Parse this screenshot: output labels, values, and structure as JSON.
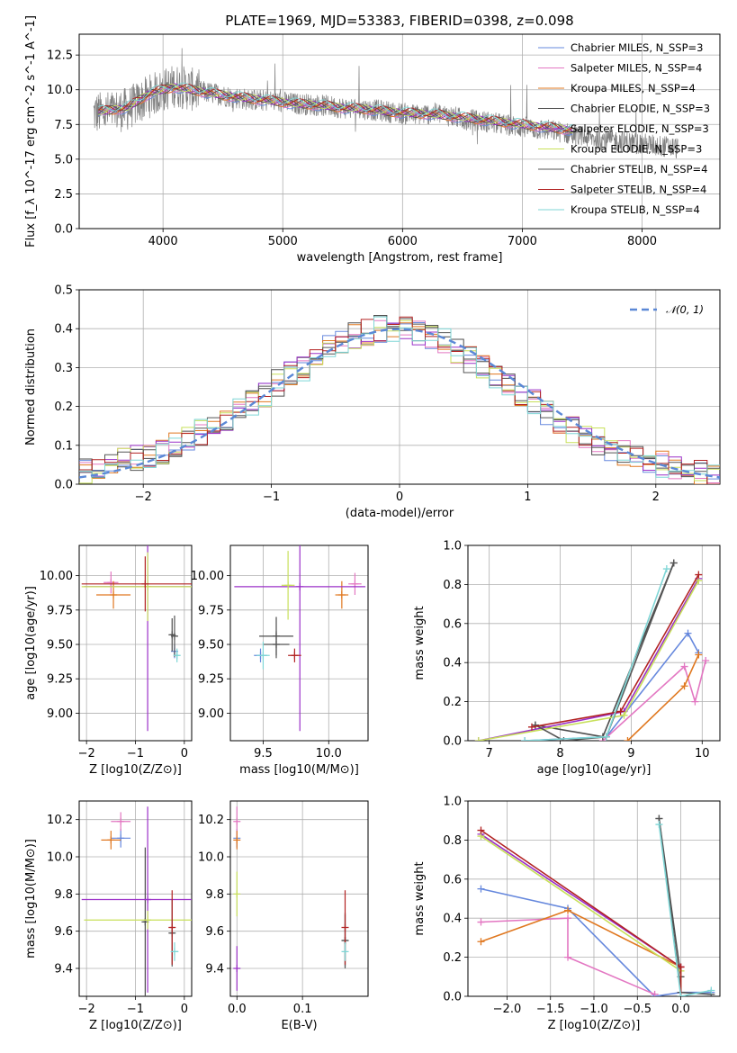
{
  "figure": {
    "title": "PLATE=1969, MJD=53383, FIBERID=0398, z=0.098"
  },
  "colors": {
    "data": "#808080",
    "series": [
      "#6688dd",
      "#e377c2",
      "#e07820",
      "#4d4d4d",
      "#9b30c8",
      "#c8e05a",
      "#555555",
      "#b22222",
      "#7fd6d6"
    ]
  },
  "chart_data": [
    {
      "id": "spectrum",
      "type": "line",
      "xlabel": "wavelength [Angstrom, rest frame]",
      "ylabel": "Flux [f_λ 10^-17 erg cm^-2 s^-1 A^-1]",
      "xlim": [
        3300,
        8650
      ],
      "ylim": [
        0,
        14
      ],
      "xticks": [
        "4000",
        "5000",
        "6000",
        "7000",
        "8000"
      ],
      "yticks": [
        "0.0",
        "2.5",
        "5.0",
        "7.5",
        "10.0",
        "12.5"
      ],
      "legend_position": "upper-right",
      "legend": [
        "Chabrier MILES, N_SSP=3",
        "Salpeter MILES, N_SSP=4",
        "Kroupa MILES, N_SSP=4",
        "Chabrier ELODIE, N_SSP=3",
        "Salpeter ELODIE, N_SSP=3",
        "Kroupa ELODIE, N_SSP=3",
        "Chabrier STELIB, N_SSP=4",
        "Salpeter STELIB, N_SSP=4",
        "Kroupa STELIB, N_SSP=4"
      ],
      "observed_trend": {
        "x": [
          3500,
          3700,
          3900,
          4100,
          4300,
          4500,
          4700,
          4900,
          5100,
          5300,
          5500,
          5700,
          5900,
          6100,
          6300,
          6500,
          6700,
          6900,
          7100,
          7300,
          7500,
          7700,
          7900,
          8100,
          8300
        ],
        "y": [
          8.3,
          8.6,
          9.6,
          10.3,
          9.9,
          9.6,
          9.3,
          9.2,
          9.0,
          8.9,
          8.7,
          8.6,
          8.4,
          8.2,
          8.3,
          7.9,
          7.7,
          7.4,
          7.2,
          7.0,
          6.6,
          6.4,
          6.2,
          6.0,
          5.8
        ]
      },
      "model_trend": {
        "x": [
          3450,
          3700,
          3900,
          4100,
          4300,
          4500,
          4700,
          4900,
          5100,
          5300,
          5500,
          5700,
          5900,
          6100,
          6300,
          6500,
          6700,
          6900,
          7100,
          7300,
          7420
        ],
        "y": [
          8.4,
          8.7,
          9.8,
          10.2,
          9.9,
          9.6,
          9.4,
          9.2,
          9.0,
          8.9,
          8.7,
          8.6,
          8.4,
          8.3,
          8.2,
          8.0,
          7.8,
          7.6,
          7.4,
          7.2,
          7.1
        ]
      }
    },
    {
      "id": "residuals",
      "type": "line",
      "xlabel": "(data-model)/error",
      "ylabel": "Normed distribution",
      "xlim": [
        -2.5,
        2.5
      ],
      "ylim": [
        0,
        0.5
      ],
      "xticks": [
        "−2",
        "−1",
        "0",
        "1",
        "2"
      ],
      "yticks": [
        "0.0",
        "0.1",
        "0.2",
        "0.3",
        "0.4",
        "0.5"
      ],
      "legend_position": "upper-right",
      "legend": [
        "𝒩(0, 1)"
      ],
      "histogram_bin_edges": [
        -2.5,
        -2.4,
        -2.3,
        -2.2,
        -2.1,
        -2.0,
        -1.9,
        -1.8,
        -1.7,
        -1.6,
        -1.5,
        -1.4,
        -1.3,
        -1.2,
        -1.1,
        -1.0,
        -0.9,
        -0.8,
        -0.7,
        -0.6,
        -0.5,
        -0.4,
        -0.3,
        -0.2,
        -0.1,
        0.0,
        0.1,
        0.2,
        0.3,
        0.4,
        0.5,
        0.6,
        0.7,
        0.8,
        0.9,
        1.0,
        1.1,
        1.2,
        1.3,
        1.4,
        1.5,
        1.6,
        1.7,
        1.8,
        1.9,
        2.0,
        2.1,
        2.2,
        2.3,
        2.4,
        2.5
      ],
      "histogram_mean": [
        0.03,
        0.035,
        0.045,
        0.06,
        0.065,
        0.07,
        0.08,
        0.1,
        0.12,
        0.135,
        0.15,
        0.17,
        0.19,
        0.21,
        0.23,
        0.26,
        0.28,
        0.3,
        0.32,
        0.35,
        0.37,
        0.38,
        0.39,
        0.4,
        0.4,
        0.4,
        0.39,
        0.38,
        0.37,
        0.34,
        0.32,
        0.3,
        0.27,
        0.25,
        0.23,
        0.21,
        0.18,
        0.16,
        0.14,
        0.12,
        0.11,
        0.09,
        0.08,
        0.07,
        0.06,
        0.05,
        0.04,
        0.035,
        0.03,
        0.025
      ],
      "gaussian": {
        "mu": 0,
        "sigma": 1
      }
    },
    {
      "id": "age-vs-Z",
      "type": "scatter",
      "xlabel": "Z [log10(Z/Z⊙)]",
      "ylabel": "age  [log10(age/yr)]",
      "xlim": [
        -2.15,
        0.15
      ],
      "ylim": [
        8.8,
        10.22
      ],
      "xticks": [
        "−2",
        "−1",
        "0"
      ],
      "yticks": [
        "9.00",
        "9.25",
        "9.50",
        "9.75",
        "10.00"
      ],
      "points": [
        {
          "series": 0,
          "x": -0.2,
          "y": 9.45,
          "xerr": 0.02,
          "yerr": 0.05
        },
        {
          "series": 1,
          "x": -1.5,
          "y": 9.95,
          "xerr": 0.15,
          "yerr": 0.08
        },
        {
          "series": 2,
          "x": -1.45,
          "y": 9.86,
          "xerr": 0.35,
          "yerr": 0.1
        },
        {
          "series": 3,
          "x": -0.25,
          "y": 9.57,
          "xerr": 0.05,
          "yerr": 0.12
        },
        {
          "series": 4,
          "x": -0.75,
          "y": 9.92,
          "xerr": 1.3,
          "yerr": 1.05
        },
        {
          "series": 5,
          "x": -0.75,
          "y": 9.92,
          "xerr": 1.35,
          "yerr": 0.25
        },
        {
          "series": 6,
          "x": -0.2,
          "y": 9.56,
          "xerr": 0.05,
          "yerr": 0.15
        },
        {
          "series": 7,
          "x": -0.8,
          "y": 9.94,
          "xerr": 1.3,
          "yerr": 0.2
        },
        {
          "series": 8,
          "x": -0.15,
          "y": 9.42,
          "xerr": 0.03,
          "yerr": 0.05
        }
      ]
    },
    {
      "id": "age-vs-mass",
      "type": "scatter",
      "xlabel": "mass [log10(M/M⊙)]",
      "ylabel": "",
      "xlim": [
        9.25,
        10.3
      ],
      "ylim": [
        8.8,
        10.22
      ],
      "xticks": [
        "9.5",
        "10.0"
      ],
      "yticks": [
        "9.00",
        "9.25",
        "9.50",
        "9.75",
        "10.00"
      ],
      "points": [
        {
          "series": 0,
          "x": 9.48,
          "y": 9.42,
          "xerr": 0.05,
          "yerr": 0.05
        },
        {
          "series": 1,
          "x": 10.2,
          "y": 9.94,
          "xerr": 0.05,
          "yerr": 0.08
        },
        {
          "series": 2,
          "x": 10.1,
          "y": 9.86,
          "xerr": 0.05,
          "yerr": 0.1
        },
        {
          "series": 3,
          "x": 9.6,
          "y": 9.56,
          "xerr": 0.13,
          "yerr": 0.14
        },
        {
          "series": 4,
          "x": 9.78,
          "y": 9.92,
          "xerr": 0.5,
          "yerr": 1.05
        },
        {
          "series": 5,
          "x": 9.69,
          "y": 9.93,
          "xerr": 0.05,
          "yerr": 0.25
        },
        {
          "series": 6,
          "x": 9.6,
          "y": 9.5,
          "xerr": 0.1,
          "yerr": 0.1
        },
        {
          "series": 7,
          "x": 9.74,
          "y": 9.42,
          "xerr": 0.05,
          "yerr": 0.05
        },
        {
          "series": 8,
          "x": 9.5,
          "y": 9.42,
          "xerr": 0.05,
          "yerr": 0.1
        }
      ]
    },
    {
      "id": "mass-weight-vs-age",
      "type": "line",
      "xlabel": "age  [log10(age/yr)]",
      "ylabel": "mass weight",
      "xlim": [
        6.7,
        10.25
      ],
      "ylim": [
        0,
        1.0
      ],
      "xticks": [
        "7",
        "8",
        "9",
        "10"
      ],
      "yticks": [
        "0.0",
        "0.2",
        "0.4",
        "0.6",
        "0.8",
        "1.0"
      ],
      "series": [
        {
          "x": [
            7.5,
            8.65,
            9.8,
            9.95
          ],
          "y": [
            0.0,
            0.02,
            0.55,
            0.45
          ]
        },
        {
          "x": [
            8.6,
            9.75,
            9.9,
            10.05
          ],
          "y": [
            0.0,
            0.38,
            0.2,
            0.41
          ]
        },
        {
          "x": [
            8.95,
            9.75,
            9.95
          ],
          "y": [
            0.0,
            0.28,
            0.44
          ]
        },
        {
          "x": [
            7.65,
            8.6,
            9.6
          ],
          "y": [
            0.08,
            0.02,
            0.91
          ]
        },
        {
          "x": [
            6.85,
            8.9,
            9.95
          ],
          "y": [
            0.0,
            0.15,
            0.83
          ]
        },
        {
          "x": [
            6.85,
            8.9,
            9.95
          ],
          "y": [
            0.0,
            0.13,
            0.82
          ]
        },
        {
          "x": [
            7.65,
            8.05,
            8.65,
            9.6
          ],
          "y": [
            0.08,
            0.0,
            0.02,
            0.91
          ]
        },
        {
          "x": [
            7.6,
            8.85,
            9.95
          ],
          "y": [
            0.07,
            0.15,
            0.85
          ]
        },
        {
          "x": [
            7.5,
            8.65,
            9.5
          ],
          "y": [
            0.0,
            0.02,
            0.88
          ]
        }
      ]
    },
    {
      "id": "mass-vs-Z",
      "type": "scatter",
      "xlabel": "Z [log10(Z/Z⊙)]",
      "ylabel": "mass [log10(M/M⊙)]",
      "xlim": [
        -2.15,
        0.15
      ],
      "ylim": [
        9.25,
        10.3
      ],
      "xticks": [
        "−2",
        "−1",
        "0"
      ],
      "yticks": [
        "9.4",
        "9.6",
        "9.8",
        "10.0",
        "10.2"
      ],
      "points": [
        {
          "series": 0,
          "x": -1.3,
          "y": 10.1,
          "xerr": 0.2,
          "yerr": 0.05
        },
        {
          "series": 1,
          "x": -1.3,
          "y": 10.19,
          "xerr": 0.2,
          "yerr": 0.05
        },
        {
          "series": 2,
          "x": -1.5,
          "y": 10.09,
          "xerr": 0.2,
          "yerr": 0.05
        },
        {
          "series": 3,
          "x": -0.8,
          "y": 9.65,
          "xerr": 0.05,
          "yerr": 0.4
        },
        {
          "series": 4,
          "x": -0.75,
          "y": 9.77,
          "xerr": 1.35,
          "yerr": 0.5
        },
        {
          "series": 5,
          "x": -0.75,
          "y": 9.66,
          "xerr": 1.3,
          "yerr": 0.05
        },
        {
          "series": 6,
          "x": -0.25,
          "y": 9.59,
          "xerr": 0.05,
          "yerr": 0.18
        },
        {
          "series": 7,
          "x": -0.25,
          "y": 9.62,
          "xerr": 0.05,
          "yerr": 0.2
        },
        {
          "series": 8,
          "x": -0.2,
          "y": 9.49,
          "xerr": 0.08,
          "yerr": 0.05
        }
      ]
    },
    {
      "id": "mass-vs-EBV",
      "type": "scatter",
      "xlabel": "E(B-V)",
      "ylabel": "",
      "xlim": [
        -0.01,
        0.2
      ],
      "ylim": [
        9.25,
        10.3
      ],
      "xticks": [
        "0.0",
        "0.1"
      ],
      "yticks": [
        "9.4",
        "9.6",
        "9.8",
        "10.0",
        "10.2"
      ],
      "points": [
        {
          "series": 0,
          "x": 0.0,
          "y": 10.1,
          "xerr": 0,
          "yerr": 0.05
        },
        {
          "series": 1,
          "x": 0.0,
          "y": 10.19,
          "xerr": 0,
          "yerr": 0.08
        },
        {
          "series": 2,
          "x": 0.0,
          "y": 10.09,
          "xerr": 0,
          "yerr": 0.05
        },
        {
          "series": 3,
          "x": 0.165,
          "y": 9.55,
          "xerr": 0,
          "yerr": 0.14
        },
        {
          "series": 4,
          "x": 0.0,
          "y": 9.4,
          "xerr": 0,
          "yerr": 0.12
        },
        {
          "series": 5,
          "x": 0.0,
          "y": 9.8,
          "xerr": 0,
          "yerr": 0.12
        },
        {
          "series": 6,
          "x": 0.165,
          "y": 9.55,
          "xerr": 0,
          "yerr": 0.15
        },
        {
          "series": 7,
          "x": 0.165,
          "y": 9.62,
          "xerr": 0,
          "yerr": 0.2
        },
        {
          "series": 8,
          "x": 0.165,
          "y": 9.49,
          "xerr": 0,
          "yerr": 0.05
        }
      ]
    },
    {
      "id": "mass-weight-vs-Z",
      "type": "line",
      "xlabel": "Z [log10(Z/Z⊙)]",
      "ylabel": "mass weight",
      "xlim": [
        -2.45,
        0.45
      ],
      "ylim": [
        0,
        1.0
      ],
      "xticks": [
        "−2.0",
        "−1.5",
        "−1.0",
        "−0.5",
        "0.0"
      ],
      "yticks": [
        "0.0",
        "0.2",
        "0.4",
        "0.6",
        "0.8",
        "1.0"
      ],
      "series": [
        {
          "x": [
            -2.3,
            -1.3,
            -0.3,
            0.0,
            0.35
          ],
          "y": [
            0.55,
            0.45,
            0.0,
            0.02,
            0.02
          ]
        },
        {
          "x": [
            -2.3,
            -1.3,
            -1.3,
            -0.3
          ],
          "y": [
            0.38,
            0.4,
            0.2,
            0.01
          ]
        },
        {
          "x": [
            -2.3,
            -1.3,
            0.0,
            0.0
          ],
          "y": [
            0.28,
            0.44,
            0.15,
            0.0
          ]
        },
        {
          "x": [
            -0.25,
            0.0,
            0.0
          ],
          "y": [
            0.91,
            0.1,
            0.0
          ]
        },
        {
          "x": [
            -2.3,
            0.0,
            0.0
          ],
          "y": [
            0.83,
            0.15,
            0.0
          ]
        },
        {
          "x": [
            -2.3,
            0.0,
            0.0
          ],
          "y": [
            0.82,
            0.13,
            0.0
          ]
        },
        {
          "x": [
            -0.25,
            0.0,
            0.35
          ],
          "y": [
            0.91,
            0.02,
            0.01
          ]
        },
        {
          "x": [
            -2.3,
            0.0,
            0.0
          ],
          "y": [
            0.85,
            0.15,
            0.0
          ]
        },
        {
          "x": [
            -0.25,
            0.0,
            0.35
          ],
          "y": [
            0.88,
            0.0,
            0.03
          ]
        }
      ]
    }
  ]
}
